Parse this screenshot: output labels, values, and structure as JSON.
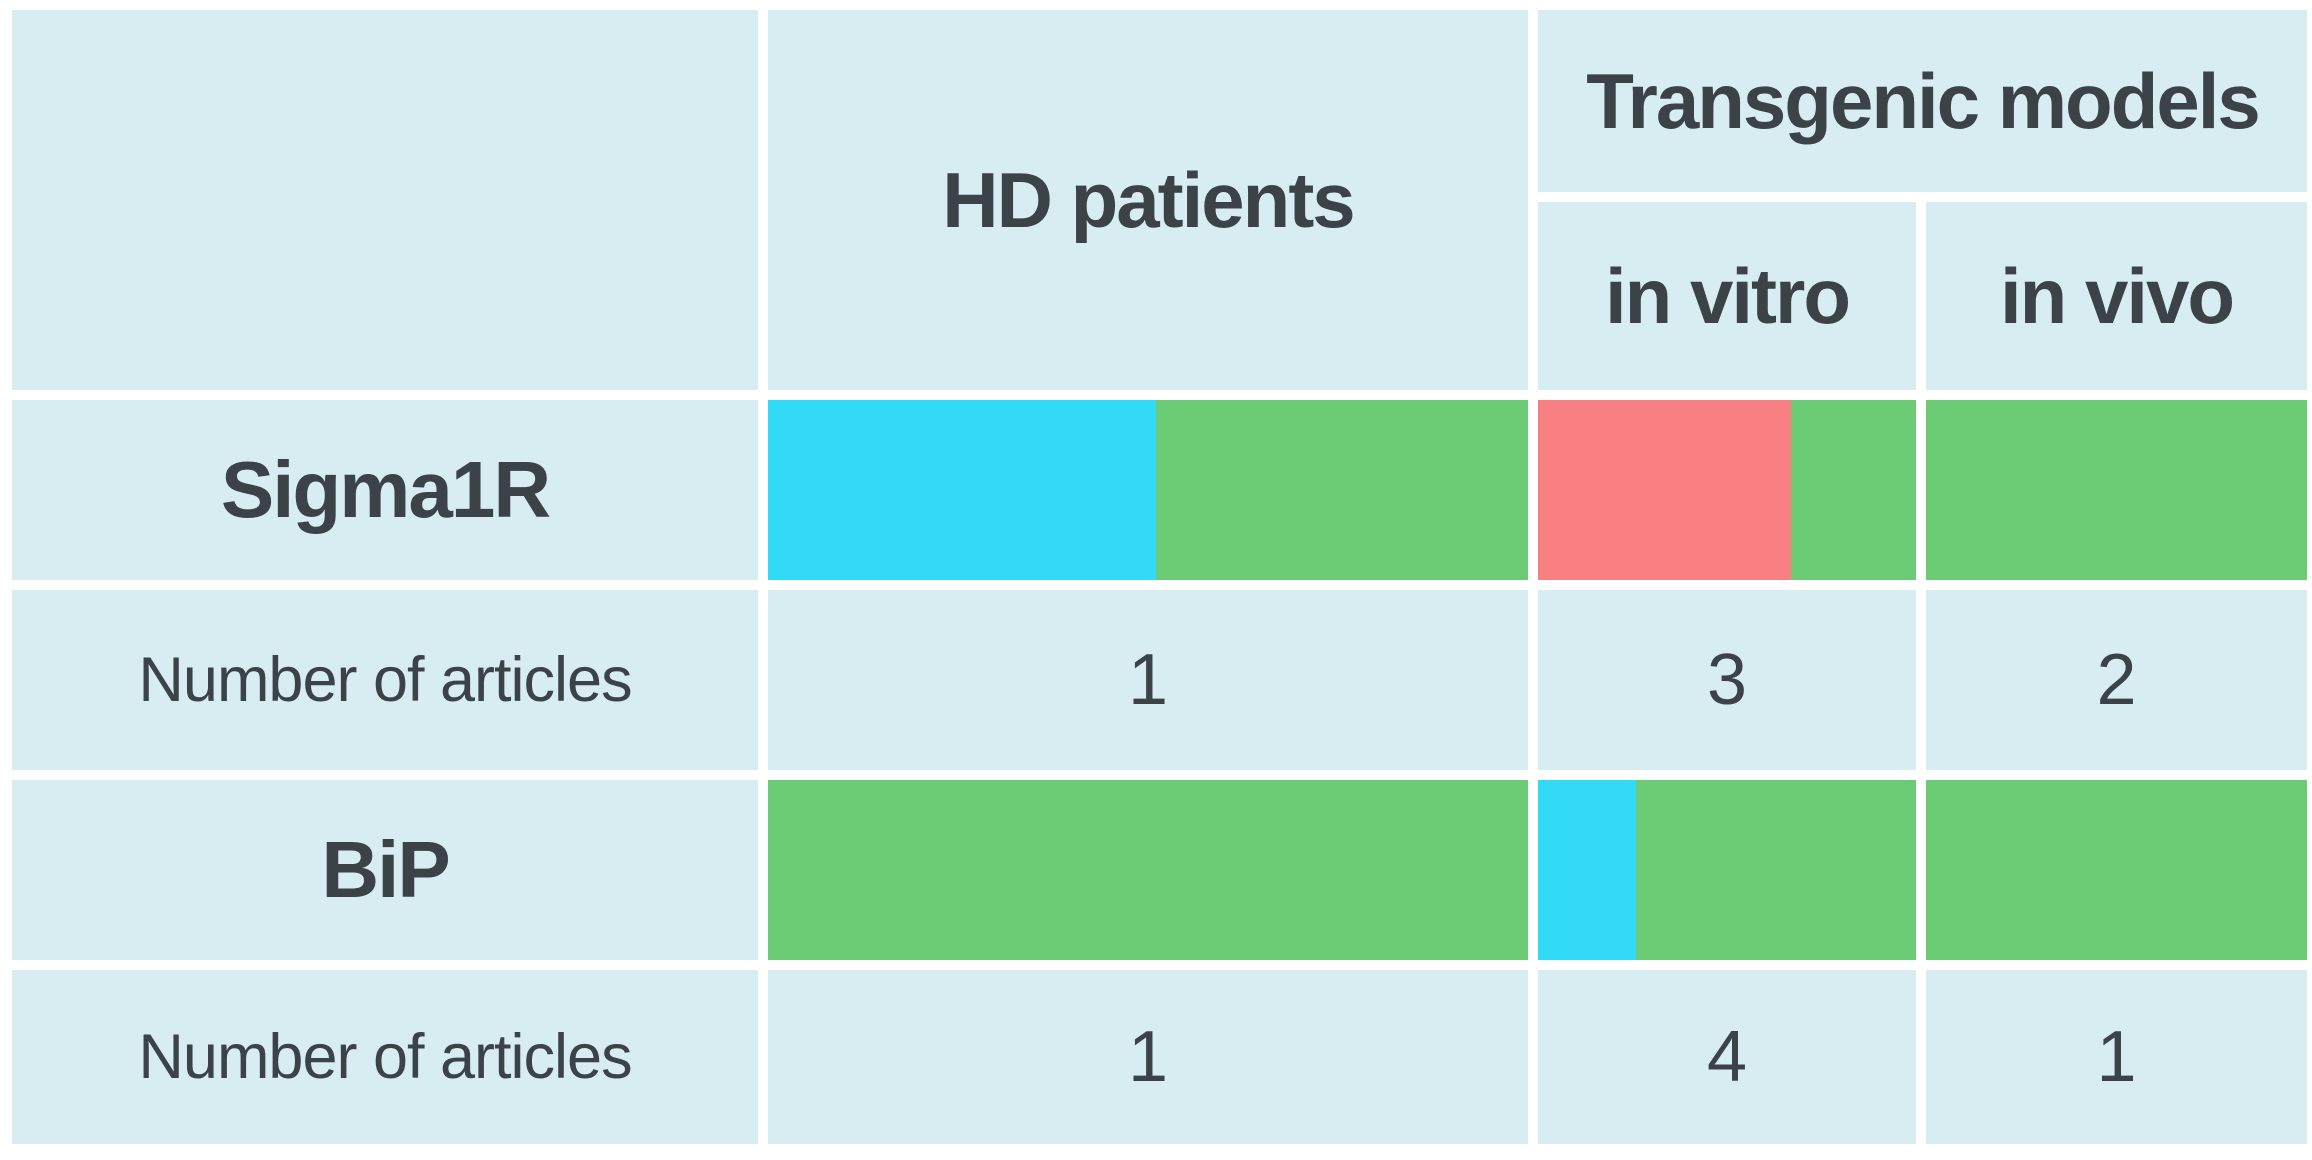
{
  "chart_data": {
    "type": "table",
    "title": "",
    "header": {
      "corner": "",
      "hd_patients": "HD patients",
      "transgenic_models": "Transgenic models",
      "in_vitro": "in vitro",
      "in_vivo": "in vivo"
    },
    "palette": {
      "cyan": "#33daf6",
      "green": "#6ccc76",
      "red": "#f98082",
      "cell_background": "#d7edf1",
      "text": "#3b4248",
      "gap_white": "#ffffff"
    },
    "rows": [
      {
        "type": "bars",
        "label": "Sigma1R",
        "cells": {
          "hd_patients": [
            {
              "color": "cyan",
              "fraction": 0.51
            },
            {
              "color": "green",
              "fraction": 0.49
            }
          ],
          "in_vitro": [
            {
              "color": "red",
              "fraction": 0.67
            },
            {
              "color": "green",
              "fraction": 0.33
            }
          ],
          "in_vivo": [
            {
              "color": "green",
              "fraction": 1.0
            }
          ]
        }
      },
      {
        "type": "counts",
        "label": "Number of articles",
        "cells": {
          "hd_patients": "1",
          "in_vitro": "3",
          "in_vivo": "2"
        }
      },
      {
        "type": "bars",
        "label": "BiP",
        "cells": {
          "hd_patients": [
            {
              "color": "green",
              "fraction": 1.0
            }
          ],
          "in_vitro": [
            {
              "color": "cyan",
              "fraction": 0.26
            },
            {
              "color": "green",
              "fraction": 0.74
            }
          ],
          "in_vivo": [
            {
              "color": "green",
              "fraction": 1.0
            }
          ]
        }
      },
      {
        "type": "counts",
        "label": "Number of articles",
        "cells": {
          "hd_patients": "1",
          "in_vitro": "4",
          "in_vivo": "1"
        }
      }
    ]
  }
}
